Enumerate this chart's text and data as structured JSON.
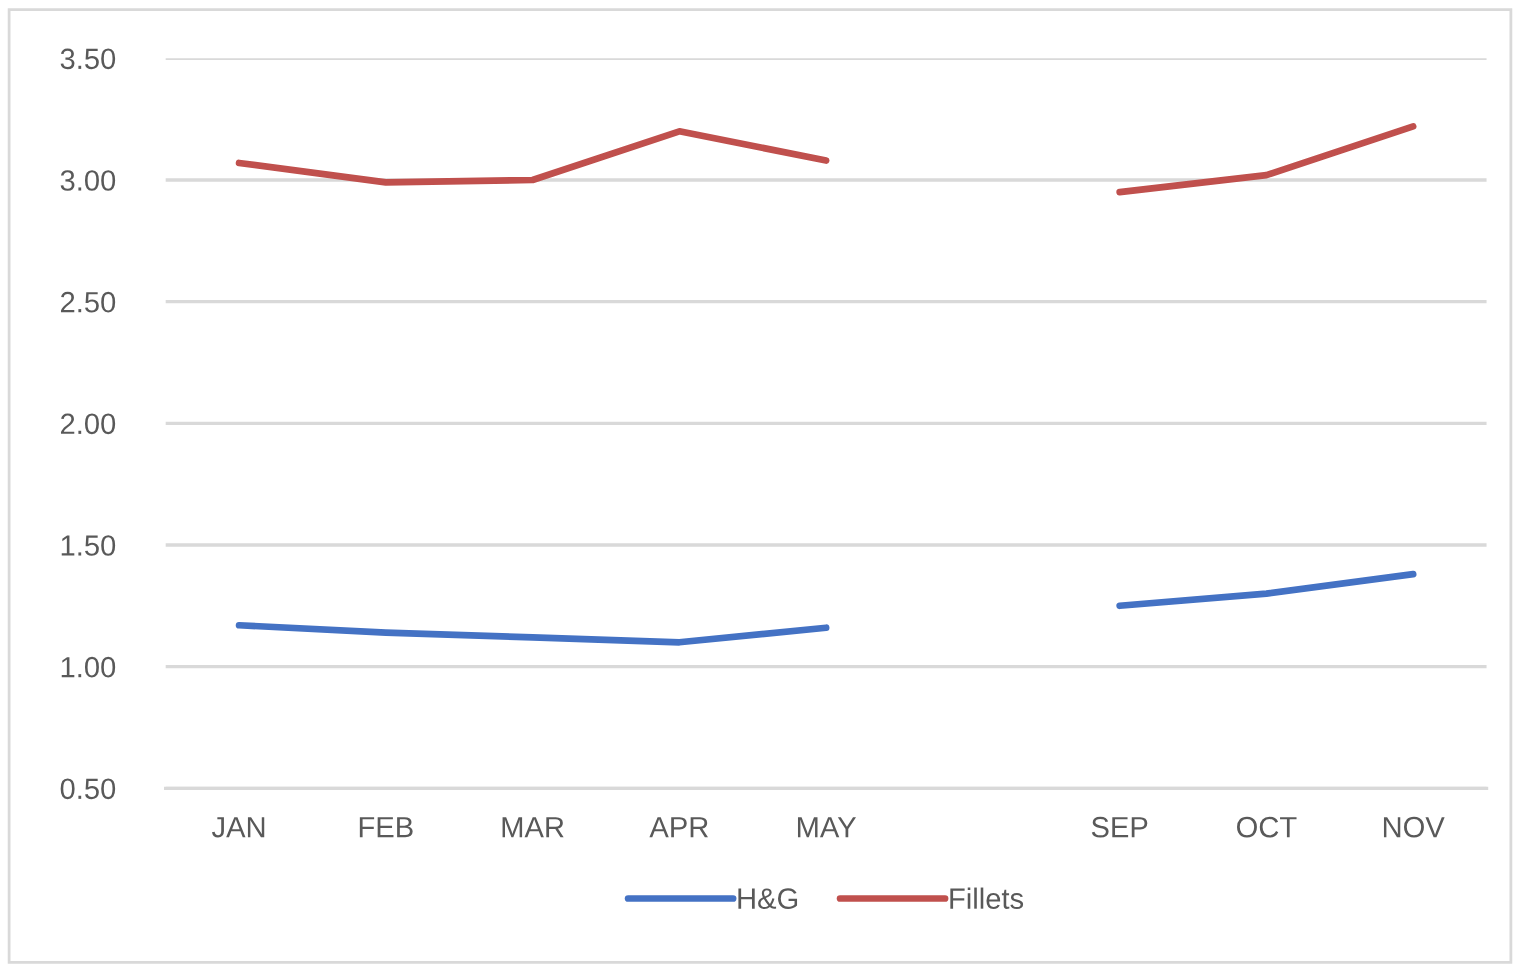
{
  "chart_data": {
    "type": "line",
    "categories": [
      "JAN",
      "FEB",
      "MAR",
      "APR",
      "MAY",
      null,
      "SEP",
      "OCT",
      "NOV"
    ],
    "series": [
      {
        "name": "H&G",
        "color": "#4472c4",
        "values": [
          1.17,
          1.14,
          1.12,
          1.1,
          1.16,
          null,
          1.25,
          1.3,
          1.38
        ]
      },
      {
        "name": "Fillets",
        "color": "#c0504d",
        "values": [
          3.07,
          2.99,
          3.0,
          3.2,
          3.08,
          null,
          2.95,
          3.02,
          3.22
        ]
      }
    ],
    "ylim": [
      0.5,
      3.5
    ],
    "yticks": [
      {
        "value": 0.5,
        "label": "0.50"
      },
      {
        "value": 1.0,
        "label": "1.00"
      },
      {
        "value": 1.5,
        "label": "1.50"
      },
      {
        "value": 2.0,
        "label": "2.00"
      },
      {
        "value": 2.5,
        "label": "2.50"
      },
      {
        "value": 3.0,
        "label": "3.00"
      },
      {
        "value": 3.5,
        "label": "3.50"
      }
    ],
    "grid": "y",
    "legend": "bottom",
    "marker": "none",
    "line_style": "solid"
  }
}
